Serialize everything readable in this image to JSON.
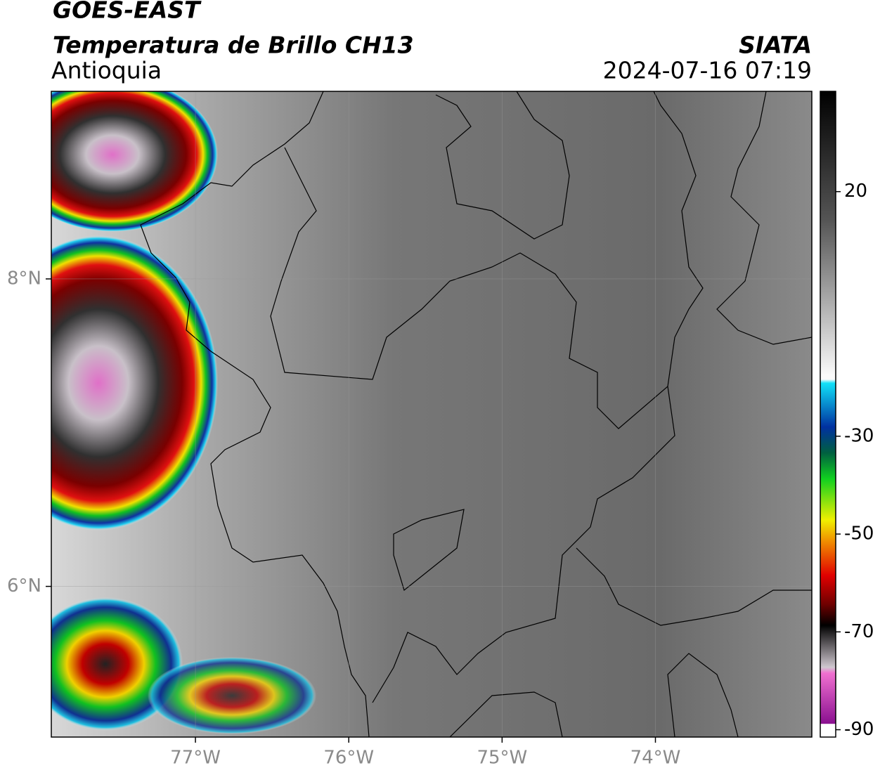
{
  "header": {
    "satellite": "GOES-EAST",
    "product": "Temperatura de Brillo CH13",
    "region": "Antioquia",
    "source": "SIATA",
    "datetime": "2024-07-16 07:19"
  },
  "map": {
    "lon_range": [
      -77.94,
      -72.98
    ],
    "lat_range": [
      5.02,
      9.22
    ],
    "lon_ticks": [
      {
        "value": -77,
        "label": "77°W"
      },
      {
        "value": -76,
        "label": "76°W"
      },
      {
        "value": -75,
        "label": "75°W"
      },
      {
        "value": -74,
        "label": "74°W"
      }
    ],
    "lat_ticks": [
      {
        "value": 8,
        "label": "8°N"
      },
      {
        "value": 6,
        "label": "6°N"
      }
    ]
  },
  "colorbar": {
    "range": [
      -91.5,
      40.5
    ],
    "ticks": [
      20,
      -30,
      -50,
      -70,
      -90
    ]
  }
}
